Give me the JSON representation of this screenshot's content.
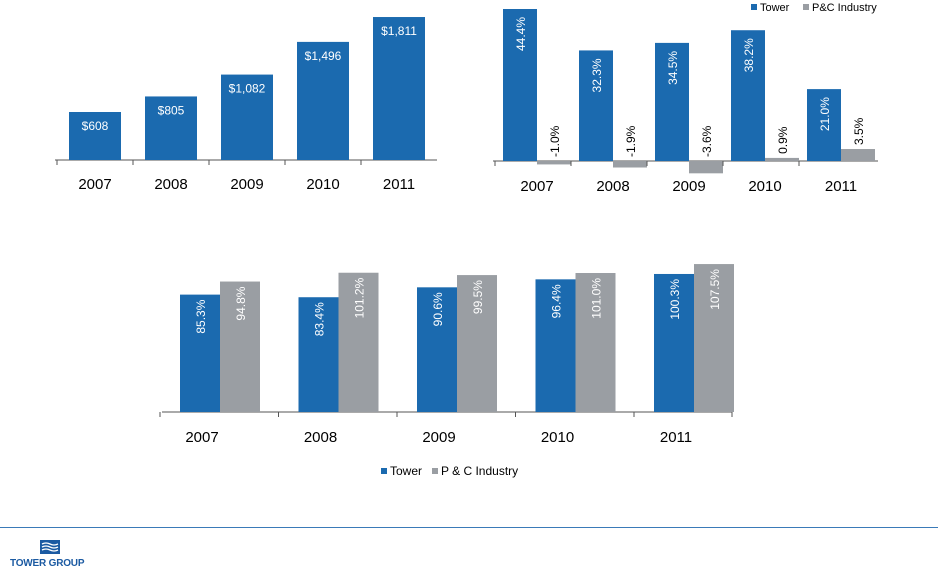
{
  "colors": {
    "tower": "#1b6aaf",
    "industry": "#9a9ea3",
    "axis": "#555555"
  },
  "chart_data": [
    {
      "type": "bar",
      "categories": [
        "2007",
        "2008",
        "2009",
        "2010",
        "2011"
      ],
      "series": [
        {
          "values": [
            608,
            805,
            1082,
            1496,
            1811
          ],
          "labels": [
            "$608",
            "$805",
            "$1,082",
            "$1,496",
            "$1,811"
          ]
        }
      ],
      "ylim": [
        0,
        1900
      ],
      "grid": false,
      "title": "",
      "xlabel": "",
      "ylabel": ""
    },
    {
      "type": "bar",
      "categories": [
        "2007",
        "2008",
        "2009",
        "2010",
        "2011"
      ],
      "series": [
        {
          "name": "Tower",
          "values": [
            44.4,
            32.3,
            34.5,
            38.2,
            21.0
          ],
          "labels": [
            "44.4%",
            "32.3%",
            "34.5%",
            "38.2%",
            "21.0%"
          ]
        },
        {
          "name": "P&C Industry",
          "values": [
            -1.0,
            -1.9,
            -3.6,
            0.9,
            3.5
          ],
          "labels": [
            "-1.0%",
            "-1.9%",
            "-3.6%",
            "0.9%",
            "3.5%"
          ]
        }
      ],
      "ylim": [
        -4,
        46
      ],
      "legend": "top-right",
      "grid": false,
      "title": "",
      "xlabel": "",
      "ylabel": ""
    },
    {
      "type": "bar",
      "categories": [
        "2007",
        "2008",
        "2009",
        "2010",
        "2011"
      ],
      "series": [
        {
          "name": "Tower",
          "values": [
            85.3,
            83.4,
            90.6,
            96.4,
            100.3
          ],
          "labels": [
            "85.3%",
            "83.4%",
            "90.6%",
            "96.4%",
            "100.3%"
          ]
        },
        {
          "name": "P & C Industry",
          "values": [
            94.8,
            101.2,
            99.5,
            101.0,
            107.5
          ],
          "labels": [
            "94.8%",
            "101.2%",
            "99.5%",
            "101.0%",
            "107.5%"
          ]
        }
      ],
      "ylim": [
        0,
        109
      ],
      "legend": "bottom",
      "grid": false,
      "title": "",
      "xlabel": "",
      "ylabel": ""
    }
  ],
  "footer": {
    "logo_text": "TOWER GROUP"
  }
}
